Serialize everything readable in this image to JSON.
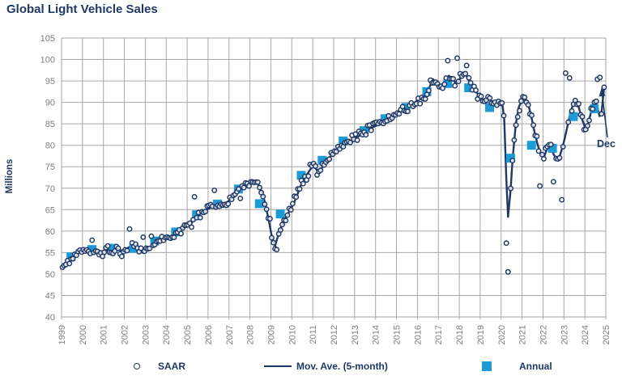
{
  "chart_data": {
    "type": "line+scatter",
    "title": "Global Light Vehicle Sales",
    "ylabel": "Millions",
    "y_axis": {
      "min": 40,
      "max": 105,
      "step": 5
    },
    "x_axis": {
      "start_year": 1999,
      "end_year": 2025,
      "tick_labels": [
        "1999",
        "2000",
        "2001",
        "2002",
        "2003",
        "2004",
        "2005",
        "2006",
        "2007",
        "2008",
        "2009",
        "2010",
        "2011",
        "2012",
        "2013",
        "2014",
        "2015",
        "2016",
        "2017",
        "2018",
        "2019",
        "2020",
        "2021",
        "2022",
        "2023",
        "2024",
        "2025"
      ]
    },
    "grid": true,
    "legend": [
      {
        "label": "SAAR",
        "marker": "circle"
      },
      {
        "label": "Mov. Ave. (5-month)",
        "marker": "line"
      },
      {
        "label": "Annual",
        "marker": "square"
      }
    ],
    "annotation": {
      "text": "Dec",
      "arrow_from": [
        750,
        170
      ],
      "arrow_to": [
        743,
        112
      ],
      "value_pointed_to": 93.4
    },
    "colors": {
      "navy": "#1F3864",
      "annual_blue": "#1E9BD7",
      "grid": "#A6A6A6",
      "tick_label": "#7F7F7F",
      "background": "#FFFFFF"
    },
    "series": {
      "annual": {
        "name": "Annual",
        "years": [
          1999,
          2000,
          2001,
          2002,
          2003,
          2004,
          2005,
          2006,
          2007,
          2008,
          2009,
          2010,
          2011,
          2012,
          2013,
          2014,
          2015,
          2016,
          2017,
          2018,
          2019,
          2020,
          2021,
          2022,
          2023,
          2024
        ],
        "values": [
          54.0,
          55.7,
          56.0,
          56.0,
          57.7,
          59.8,
          63.8,
          66.3,
          69.8,
          66.4,
          64.0,
          73.0,
          76.5,
          81.0,
          83.4,
          86.2,
          88.8,
          92.5,
          94.4,
          93.4,
          88.8,
          77.0,
          80.0,
          79.3,
          86.7,
          88.5
        ],
        "marker_year_offset": 0.45
      },
      "mov_ave": {
        "name": "Mov. Ave. (5-month)",
        "points": [
          [
            1999.0,
            51.3
          ],
          [
            1999.3,
            52.5
          ],
          [
            1999.6,
            54.0
          ],
          [
            1999.9,
            55.2
          ],
          [
            2000.2,
            55.7
          ],
          [
            2000.5,
            56.0
          ],
          [
            2000.8,
            55.4
          ],
          [
            2001.0,
            55.1
          ],
          [
            2001.3,
            55.7
          ],
          [
            2001.6,
            56.1
          ],
          [
            2001.9,
            55.3
          ],
          [
            2002.1,
            55.9
          ],
          [
            2002.35,
            56.6
          ],
          [
            2002.6,
            55.8
          ],
          [
            2002.85,
            55.0
          ],
          [
            2003.1,
            55.6
          ],
          [
            2003.35,
            56.8
          ],
          [
            2003.6,
            57.6
          ],
          [
            2003.9,
            58.2
          ],
          [
            2004.2,
            58.8
          ],
          [
            2004.5,
            59.8
          ],
          [
            2004.8,
            60.6
          ],
          [
            2005.1,
            61.4
          ],
          [
            2005.35,
            62.6
          ],
          [
            2005.6,
            64.0
          ],
          [
            2005.85,
            64.8
          ],
          [
            2006.1,
            65.4
          ],
          [
            2006.35,
            66.2
          ],
          [
            2006.6,
            66.0
          ],
          [
            2006.85,
            66.6
          ],
          [
            2007.1,
            67.4
          ],
          [
            2007.35,
            68.6
          ],
          [
            2007.6,
            69.9
          ],
          [
            2007.85,
            71.0
          ],
          [
            2008.1,
            71.9
          ],
          [
            2008.3,
            71.5
          ],
          [
            2008.5,
            70.0
          ],
          [
            2008.7,
            67.0
          ],
          [
            2008.9,
            62.5
          ],
          [
            2009.05,
            58.5
          ],
          [
            2009.2,
            56.6
          ],
          [
            2009.35,
            59.0
          ],
          [
            2009.5,
            61.0
          ],
          [
            2009.7,
            63.0
          ],
          [
            2009.9,
            64.8
          ],
          [
            2010.1,
            66.5
          ],
          [
            2010.3,
            69.0
          ],
          [
            2010.5,
            71.5
          ],
          [
            2010.7,
            73.0
          ],
          [
            2010.9,
            74.5
          ],
          [
            2011.05,
            75.3
          ],
          [
            2011.25,
            73.8
          ],
          [
            2011.45,
            74.8
          ],
          [
            2011.6,
            76.0
          ],
          [
            2011.8,
            77.2
          ],
          [
            2012.0,
            78.0
          ],
          [
            2012.2,
            78.8
          ],
          [
            2012.4,
            79.8
          ],
          [
            2012.6,
            80.3
          ],
          [
            2012.8,
            80.9
          ],
          [
            2013.0,
            81.5
          ],
          [
            2013.25,
            82.3
          ],
          [
            2013.5,
            83.2
          ],
          [
            2013.75,
            83.9
          ],
          [
            2014.0,
            84.5
          ],
          [
            2014.25,
            85.1
          ],
          [
            2014.5,
            85.7
          ],
          [
            2014.75,
            86.3
          ],
          [
            2015.0,
            87.2
          ],
          [
            2015.25,
            88.0
          ],
          [
            2015.5,
            88.7
          ],
          [
            2015.75,
            89.5
          ],
          [
            2016.0,
            90.5
          ],
          [
            2016.2,
            91.0
          ],
          [
            2016.4,
            91.8
          ],
          [
            2016.6,
            93.8
          ],
          [
            2016.75,
            95.4
          ],
          [
            2016.9,
            94.4
          ],
          [
            2017.05,
            93.5
          ],
          [
            2017.2,
            94.2
          ],
          [
            2017.35,
            95.3
          ],
          [
            2017.5,
            96.2
          ],
          [
            2017.65,
            95.6
          ],
          [
            2017.8,
            94.7
          ],
          [
            2017.95,
            94.9
          ],
          [
            2018.1,
            96.0
          ],
          [
            2018.25,
            96.8
          ],
          [
            2018.4,
            95.8
          ],
          [
            2018.55,
            94.0
          ],
          [
            2018.7,
            92.6
          ],
          [
            2018.85,
            92.2
          ],
          [
            2019.0,
            91.4
          ],
          [
            2019.15,
            90.4
          ],
          [
            2019.3,
            90.6
          ],
          [
            2019.45,
            90.9
          ],
          [
            2019.6,
            89.9
          ],
          [
            2019.75,
            89.4
          ],
          [
            2019.9,
            89.6
          ],
          [
            2020.05,
            89.9
          ],
          [
            2020.15,
            86.0
          ],
          [
            2020.25,
            72.0
          ],
          [
            2020.33,
            63.3
          ],
          [
            2020.45,
            69.5
          ],
          [
            2020.55,
            77.0
          ],
          [
            2020.7,
            85.0
          ],
          [
            2020.85,
            89.0
          ],
          [
            2021.0,
            90.4
          ],
          [
            2021.15,
            90.9
          ],
          [
            2021.3,
            89.5
          ],
          [
            2021.45,
            86.5
          ],
          [
            2021.6,
            83.0
          ],
          [
            2021.75,
            80.0
          ],
          [
            2021.9,
            78.0
          ],
          [
            2022.05,
            77.3
          ],
          [
            2022.2,
            79.3
          ],
          [
            2022.35,
            79.8
          ],
          [
            2022.5,
            78.0
          ],
          [
            2022.65,
            76.6
          ],
          [
            2022.8,
            77.5
          ],
          [
            2022.95,
            79.8
          ],
          [
            2023.1,
            83.0
          ],
          [
            2023.25,
            86.3
          ],
          [
            2023.4,
            89.0
          ],
          [
            2023.55,
            90.3
          ],
          [
            2023.7,
            89.0
          ],
          [
            2023.85,
            86.3
          ],
          [
            2024.0,
            84.2
          ],
          [
            2024.1,
            84.0
          ],
          [
            2024.25,
            86.8
          ],
          [
            2024.4,
            90.0
          ],
          [
            2024.5,
            90.6
          ],
          [
            2024.6,
            88.8
          ],
          [
            2024.7,
            86.8
          ],
          [
            2024.8,
            87.8
          ],
          [
            2024.92,
            93.4
          ]
        ]
      },
      "saar": {
        "name": "SAAR",
        "frequency": "monthly",
        "synthesis": {
          "seed": 11,
          "amplitude": 1.35,
          "wild_every": 17,
          "wild_amplitude": 2.7,
          "clamp_min": 49.8,
          "clamp_max": 100.3
        },
        "outliers": [
          [
            2002.25,
            60.5
          ],
          [
            2002.9,
            58.6
          ],
          [
            2005.35,
            68.0
          ],
          [
            2006.3,
            69.5
          ],
          [
            2009.2,
            55.9
          ],
          [
            2009.28,
            55.7
          ],
          [
            2017.45,
            99.7
          ],
          [
            2017.9,
            100.3
          ],
          [
            2018.35,
            98.6
          ],
          [
            2020.25,
            57.2
          ],
          [
            2020.33,
            50.5
          ],
          [
            2021.85,
            70.5
          ],
          [
            2022.5,
            71.5
          ],
          [
            2022.9,
            67.3
          ],
          [
            2023.08,
            96.8
          ],
          [
            2023.27,
            95.7
          ],
          [
            2024.6,
            95.4
          ],
          [
            2024.72,
            95.8
          ],
          [
            2024.92,
            93.5
          ]
        ]
      }
    }
  }
}
